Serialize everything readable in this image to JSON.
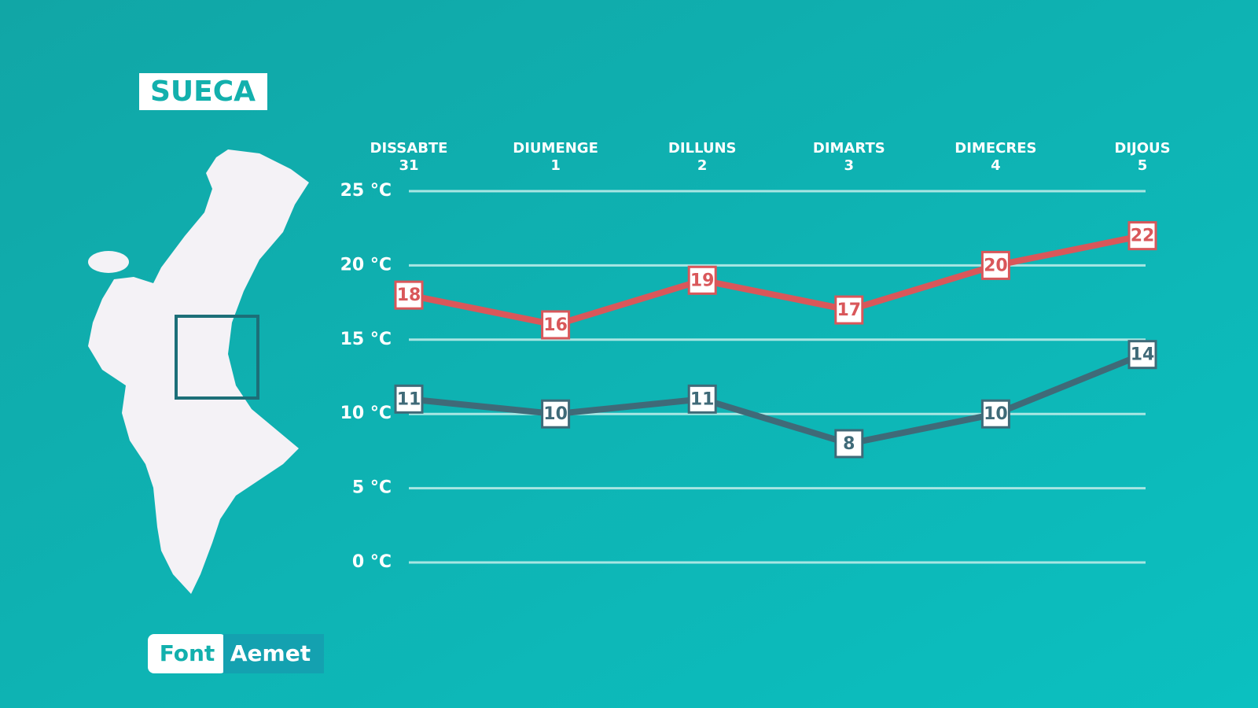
{
  "header": {
    "title": "SUECA"
  },
  "source": {
    "label": "Font",
    "name": "Aemet"
  },
  "chart_data": {
    "type": "line",
    "categories": [
      "DISSABTE",
      "DIUMENGE",
      "DILLUNS",
      "DIMARTS",
      "DIMECRES",
      "DIJOUS"
    ],
    "dates": [
      "31",
      "1",
      "2",
      "3",
      "4",
      "5"
    ],
    "ylim": [
      0,
      25
    ],
    "yticks": [
      {
        "value": 0,
        "label": "0 °C"
      },
      {
        "value": 5,
        "label": "5 °C"
      },
      {
        "value": 10,
        "label": "10 °C"
      },
      {
        "value": 15,
        "label": "15 °C"
      },
      {
        "value": 20,
        "label": "20 °C"
      },
      {
        "value": 25,
        "label": "25 °C"
      }
    ],
    "grid": true,
    "series": [
      {
        "color": "#d9575a",
        "values": [
          18,
          16,
          19,
          17,
          20,
          22
        ]
      },
      {
        "color": "#3f6a78",
        "values": [
          11,
          10,
          11,
          8,
          10,
          14
        ]
      }
    ]
  }
}
